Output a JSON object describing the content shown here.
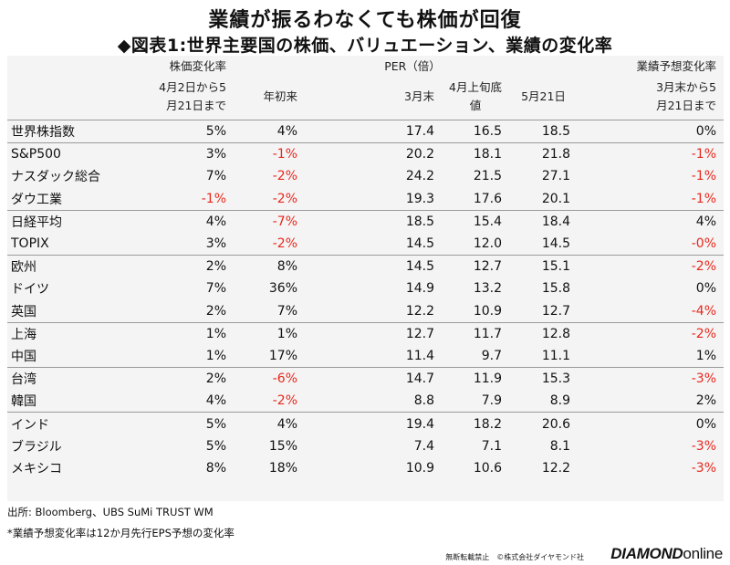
{
  "title": "業績が振るわなくても株価が回復",
  "subtitle": "◆図表1:世界主要国の株価、バリュエーション、業績の変化率",
  "headers": {
    "group_stock": "株価変化率",
    "group_per": "PER（倍）",
    "group_eps": "業績予想変化率",
    "col_stock_apr": "4月2日から5\n月21日まで",
    "col_stock_ytd": "年初来",
    "col_per_mar": "3月末",
    "col_per_apr": "4月上旬底\n値",
    "col_per_may": "5月21日",
    "col_eps": "3月末から5\n月21日まで"
  },
  "rows": [
    {
      "name": "世界株指数",
      "stock_apr": "5%",
      "stock_ytd": "4%",
      "per_mar": "17.4",
      "per_apr": "16.5",
      "per_may": "18.5",
      "eps": "0%",
      "sep": false
    },
    {
      "name": "S&P500",
      "stock_apr": "3%",
      "stock_ytd": "-1%",
      "per_mar": "20.2",
      "per_apr": "18.1",
      "per_may": "21.8",
      "eps": "-1%",
      "sep": true
    },
    {
      "name": "ナスダック総合",
      "stock_apr": "7%",
      "stock_ytd": "-2%",
      "per_mar": "24.2",
      "per_apr": "21.5",
      "per_may": "27.1",
      "eps": "-1%",
      "sep": false
    },
    {
      "name": "ダウ工業",
      "stock_apr": "-1%",
      "stock_ytd": "-2%",
      "per_mar": "19.3",
      "per_apr": "17.6",
      "per_may": "20.1",
      "eps": "-1%",
      "sep": false
    },
    {
      "name": "日経平均",
      "stock_apr": "4%",
      "stock_ytd": "-7%",
      "per_mar": "18.5",
      "per_apr": "15.4",
      "per_may": "18.4",
      "eps": "4%",
      "sep": true
    },
    {
      "name": "TOPIX",
      "stock_apr": "3%",
      "stock_ytd": "-2%",
      "per_mar": "14.5",
      "per_apr": "12.0",
      "per_may": "14.5",
      "eps": "-0%",
      "sep": false
    },
    {
      "name": "欧州",
      "stock_apr": "2%",
      "stock_ytd": "8%",
      "per_mar": "14.5",
      "per_apr": "12.7",
      "per_may": "15.1",
      "eps": "-2%",
      "sep": true
    },
    {
      "name": "ドイツ",
      "stock_apr": "7%",
      "stock_ytd": "36%",
      "per_mar": "14.9",
      "per_apr": "13.2",
      "per_may": "15.8",
      "eps": "0%",
      "sep": false
    },
    {
      "name": "英国",
      "stock_apr": "2%",
      "stock_ytd": "7%",
      "per_mar": "12.2",
      "per_apr": "10.9",
      "per_may": "12.7",
      "eps": "-4%",
      "sep": false
    },
    {
      "name": "上海",
      "stock_apr": "1%",
      "stock_ytd": "1%",
      "per_mar": "12.7",
      "per_apr": "11.7",
      "per_may": "12.8",
      "eps": "-2%",
      "sep": true
    },
    {
      "name": "中国",
      "stock_apr": "1%",
      "stock_ytd": "17%",
      "per_mar": "11.4",
      "per_apr": "9.7",
      "per_may": "11.1",
      "eps": "1%",
      "sep": false
    },
    {
      "name": "台湾",
      "stock_apr": "2%",
      "stock_ytd": "-6%",
      "per_mar": "14.7",
      "per_apr": "11.9",
      "per_may": "15.3",
      "eps": "-3%",
      "sep": true
    },
    {
      "name": "韓国",
      "stock_apr": "4%",
      "stock_ytd": "-2%",
      "per_mar": "8.8",
      "per_apr": "7.9",
      "per_may": "8.9",
      "eps": "2%",
      "sep": false
    },
    {
      "name": "インド",
      "stock_apr": "5%",
      "stock_ytd": "4%",
      "per_mar": "19.4",
      "per_apr": "18.2",
      "per_may": "20.6",
      "eps": "0%",
      "sep": true
    },
    {
      "name": "ブラジル",
      "stock_apr": "5%",
      "stock_ytd": "15%",
      "per_mar": "7.4",
      "per_apr": "7.1",
      "per_may": "8.1",
      "eps": "-3%",
      "sep": false
    },
    {
      "name": "メキシコ",
      "stock_apr": "8%",
      "stock_ytd": "18%",
      "per_mar": "10.9",
      "per_apr": "10.6",
      "per_may": "12.2",
      "eps": "-3%",
      "sep": false
    }
  ],
  "colors": {
    "negative": "#e8281e",
    "background": "#f4f4f4"
  },
  "source": "出所: Bloomberg、UBS SuMi TRUST WM",
  "note": "*業績予想変化率は12か月先行EPS予想の変化率",
  "credit": "無断転載禁止　©株式会社ダイヤモンド社",
  "logo_bold": "DIAMOND",
  "logo_light": "online"
}
